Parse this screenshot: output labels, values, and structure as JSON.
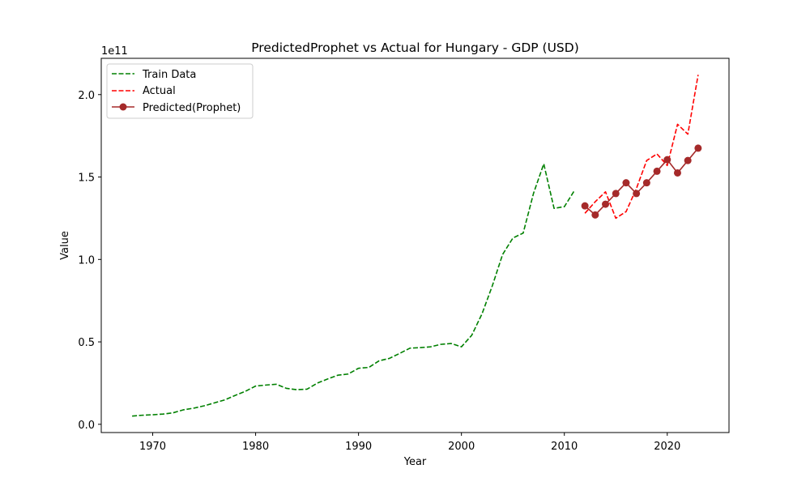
{
  "chart_data": {
    "type": "line",
    "title": "PredictedProphet vs Actual for Hungary - GDP (USD)",
    "xlabel": "Year",
    "ylabel": "Value",
    "y_offset_label": "1e11",
    "xlim": [
      1965,
      2026
    ],
    "ylim": [
      -0.05,
      2.22
    ],
    "x_ticks": [
      1970,
      1980,
      1990,
      2000,
      2010,
      2020
    ],
    "x_tick_labels": [
      "1970",
      "1980",
      "1990",
      "2000",
      "2010",
      "2020"
    ],
    "y_ticks": [
      0.0,
      0.5,
      1.0,
      1.5,
      2.0
    ],
    "y_tick_labels": [
      "0.0",
      "0.5",
      "1.0",
      "1.5",
      "2.0"
    ],
    "grid": false,
    "legend": "top-left",
    "series": [
      {
        "name": "Train Data",
        "color": "#008000",
        "style": "dashed",
        "x": [
          1968,
          1969,
          1970,
          1971,
          1972,
          1973,
          1974,
          1975,
          1976,
          1977,
          1978,
          1979,
          1980,
          1981,
          1982,
          1983,
          1984,
          1985,
          1986,
          1987,
          1988,
          1989,
          1990,
          1991,
          1992,
          1993,
          1994,
          1995,
          1996,
          1997,
          1998,
          1999,
          2000,
          2001,
          2002,
          2003,
          2004,
          2005,
          2006,
          2007,
          2008,
          2009,
          2010,
          2011
        ],
        "values": [
          0.05,
          0.055,
          0.058,
          0.062,
          0.07,
          0.088,
          0.098,
          0.112,
          0.13,
          0.148,
          0.175,
          0.2,
          0.232,
          0.238,
          0.243,
          0.218,
          0.21,
          0.213,
          0.25,
          0.275,
          0.298,
          0.305,
          0.34,
          0.345,
          0.385,
          0.4,
          0.43,
          0.462,
          0.465,
          0.47,
          0.485,
          0.49,
          0.47,
          0.54,
          0.67,
          0.84,
          1.03,
          1.13,
          1.16,
          1.4,
          1.58,
          1.31,
          1.32,
          1.42
        ]
      },
      {
        "name": "Actual",
        "color": "#ff0000",
        "style": "dashed",
        "x": [
          2012,
          2013,
          2014,
          2015,
          2016,
          2017,
          2018,
          2019,
          2020,
          2021,
          2022,
          2023
        ],
        "values": [
          1.28,
          1.35,
          1.41,
          1.25,
          1.29,
          1.43,
          1.6,
          1.64,
          1.57,
          1.82,
          1.76,
          2.12
        ]
      },
      {
        "name": "Predicted(Prophet)",
        "color": "#a52a2a",
        "style": "solid-marker",
        "x": [
          2012,
          2013,
          2014,
          2015,
          2016,
          2017,
          2018,
          2019,
          2020,
          2021,
          2022,
          2023
        ],
        "values": [
          1.325,
          1.27,
          1.335,
          1.4,
          1.465,
          1.4,
          1.465,
          1.535,
          1.605,
          1.525,
          1.6,
          1.675
        ]
      }
    ]
  }
}
